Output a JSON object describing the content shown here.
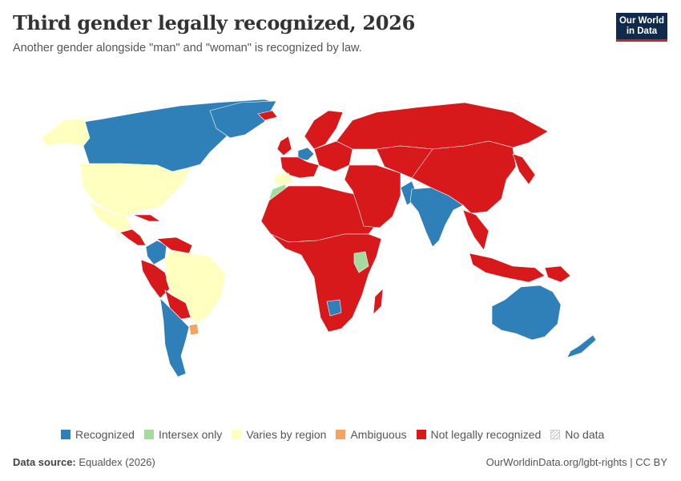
{
  "header": {
    "title": "Third gender legally recognized, 2026",
    "subtitle": "Another gender alongside \"man\" and \"woman\" is recognized by law.",
    "logo_line1": "Our World",
    "logo_line2": "in Data"
  },
  "colors": {
    "recognized": "#2f7fb8",
    "intersex_only": "#a6dba0",
    "varies_by_region": "#ffffbf",
    "ambiguous": "#f4a460",
    "not_recognized": "#d7191c",
    "no_data": "#f2f2f2",
    "logo_bg": "#0f2a4d",
    "logo_accent": "#ce261e"
  },
  "legend": {
    "items": [
      {
        "label": "Recognized",
        "color": "#2f7fb8"
      },
      {
        "label": "Intersex only",
        "color": "#a6dba0"
      },
      {
        "label": "Varies by region",
        "color": "#ffffbf"
      },
      {
        "label": "Ambiguous",
        "color": "#f4a460"
      },
      {
        "label": "Not legally recognized",
        "color": "#d7191c"
      },
      {
        "label": "No data",
        "color": "#f2f2f2"
      }
    ]
  },
  "footer": {
    "source_label": "Data source:",
    "source_value": "Equaldex (2026)",
    "url_license": "OurWorldinData.org/lgbt-rights | CC BY"
  }
}
